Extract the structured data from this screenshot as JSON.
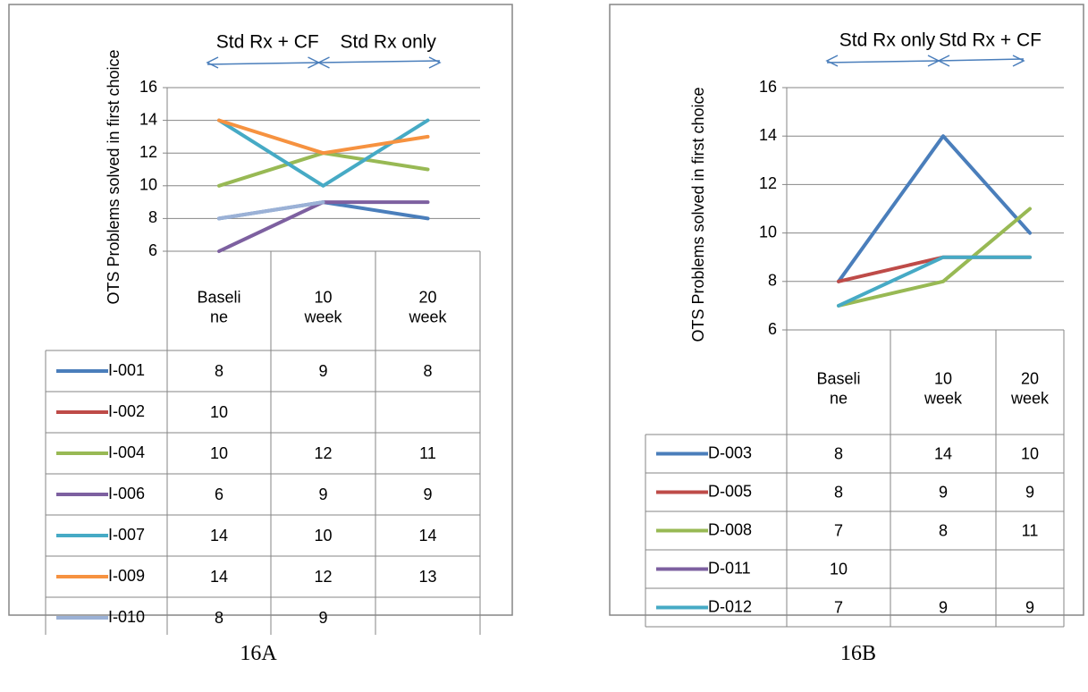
{
  "chart_data": [
    {
      "type": "line",
      "caption": "16A",
      "ylabel": "OTS Problems solved in first choice",
      "ylim": [
        6,
        16
      ],
      "yticks": [
        "6",
        "8",
        "10",
        "12",
        "14",
        "16"
      ],
      "categories": [
        "Baseli ne",
        "10 week",
        "20 week"
      ],
      "category_lines": [
        [
          "Baseli",
          "ne"
        ],
        [
          "10",
          "week"
        ],
        [
          "20",
          "week"
        ]
      ],
      "phases": [
        "Std Rx + CF",
        "Std Rx only"
      ],
      "grid": true,
      "legend": "data-table",
      "series": [
        {
          "name": "I-001",
          "color": "#4a7ebb",
          "values": [
            8,
            9,
            8
          ]
        },
        {
          "name": "I-002",
          "color": "#be4b48",
          "values": [
            10,
            null,
            null
          ]
        },
        {
          "name": "I-004",
          "color": "#98b954",
          "values": [
            10,
            12,
            11
          ]
        },
        {
          "name": "I-006",
          "color": "#7d60a0",
          "values": [
            6,
            9,
            9
          ]
        },
        {
          "name": "I-007",
          "color": "#46aac5",
          "values": [
            14,
            10,
            14
          ]
        },
        {
          "name": "I-009",
          "color": "#f69240",
          "values": [
            14,
            12,
            13
          ]
        },
        {
          "name": "I-010",
          "color": "#9bb1d6",
          "values": [
            8,
            9,
            null
          ]
        }
      ]
    },
    {
      "type": "line",
      "caption": "16B",
      "ylabel": "OTS Problems solved in first choice",
      "ylim": [
        6,
        16
      ],
      "yticks": [
        "6",
        "8",
        "10",
        "12",
        "14",
        "16"
      ],
      "categories": [
        "Baseli ne",
        "10 week",
        "20 week"
      ],
      "category_lines": [
        [
          "Baseli",
          "ne"
        ],
        [
          "10",
          "week"
        ],
        [
          "20",
          "week"
        ]
      ],
      "phases": [
        "Std Rx only",
        "Std Rx + CF"
      ],
      "grid": true,
      "legend": "data-table",
      "series": [
        {
          "name": "D-003",
          "color": "#4a7ebb",
          "values": [
            8,
            14,
            10
          ]
        },
        {
          "name": "D-005",
          "color": "#be4b48",
          "values": [
            8,
            9,
            9
          ]
        },
        {
          "name": "D-008",
          "color": "#98b954",
          "values": [
            7,
            8,
            11
          ]
        },
        {
          "name": "D-011",
          "color": "#7d60a0",
          "values": [
            10,
            null,
            null
          ]
        },
        {
          "name": "D-012",
          "color": "#46aac5",
          "values": [
            7,
            9,
            9
          ]
        }
      ]
    }
  ]
}
